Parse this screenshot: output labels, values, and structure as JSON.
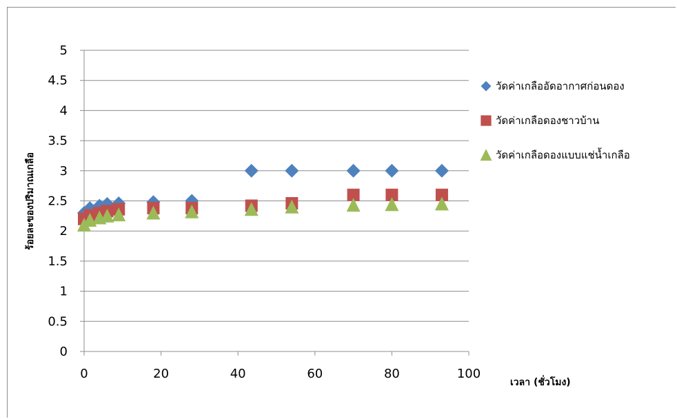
{
  "chart_data": {
    "type": "scatter",
    "xlabel": "เวลา (ชั่วโมง)",
    "ylabel": "ร้อยละของปริมาณเกลือ",
    "xlim": [
      0,
      100
    ],
    "ylim": [
      0,
      5
    ],
    "xticks": [
      "0",
      "20",
      "40",
      "60",
      "80",
      "100"
    ],
    "yticks": [
      "0",
      "0.5",
      "1",
      "1.5",
      "2",
      "2.5",
      "3",
      "3.5",
      "4",
      "4.5",
      "5"
    ],
    "grid": "horizontal",
    "legend_position": "right",
    "series": [
      {
        "name": "วัดค่าเกลืออัดอากาศก่อนดอง",
        "marker": "diamond",
        "color": "#4F81BD",
        "points": [
          [
            0,
            2.3
          ],
          [
            1.5,
            2.38
          ],
          [
            4,
            2.42
          ],
          [
            6,
            2.45
          ],
          [
            9,
            2.46
          ],
          [
            18,
            2.48
          ],
          [
            28,
            2.5
          ],
          [
            43.5,
            3.0
          ],
          [
            54,
            3.0
          ],
          [
            70,
            3.0
          ],
          [
            80,
            3.0
          ],
          [
            93,
            3.0
          ]
        ]
      },
      {
        "name": "วัดค่าเกลือดองชาวบ้าน",
        "marker": "square",
        "color": "#C0504D",
        "points": [
          [
            0,
            2.2
          ],
          [
            1.5,
            2.26
          ],
          [
            4,
            2.3
          ],
          [
            6,
            2.33
          ],
          [
            9,
            2.36
          ],
          [
            18,
            2.38
          ],
          [
            28,
            2.38
          ],
          [
            43.5,
            2.42
          ],
          [
            54,
            2.46
          ],
          [
            70,
            2.6
          ],
          [
            80,
            2.6
          ],
          [
            93,
            2.6
          ]
        ]
      },
      {
        "name": "วัดค่าเกลือดองแบบแช่น้ำเกลือ",
        "marker": "triangle",
        "color": "#9BBB59",
        "points": [
          [
            0,
            2.1
          ],
          [
            1.5,
            2.18
          ],
          [
            4,
            2.22
          ],
          [
            6,
            2.25
          ],
          [
            9,
            2.27
          ],
          [
            18,
            2.3
          ],
          [
            28,
            2.32
          ],
          [
            43.5,
            2.36
          ],
          [
            54,
            2.4
          ],
          [
            70,
            2.43
          ],
          [
            80,
            2.44
          ],
          [
            93,
            2.45
          ]
        ]
      }
    ]
  }
}
